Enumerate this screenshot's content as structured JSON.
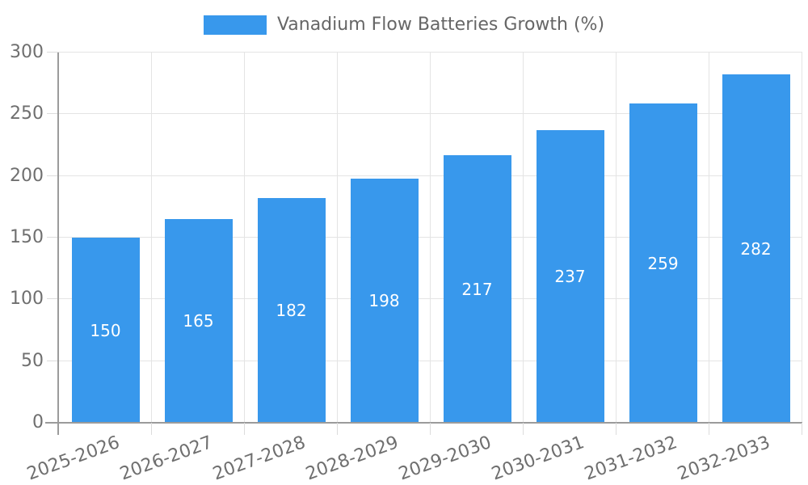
{
  "chart_data": {
    "type": "bar",
    "legend": [
      "Vanadium Flow Batteries Growth (%)"
    ],
    "legend_position": "top-center",
    "categories": [
      "2025-2026",
      "2026-2027",
      "2027-2028",
      "2028-2029",
      "2029-2030",
      "2030-2031",
      "2031-2032",
      "2032-2033"
    ],
    "values": [
      150,
      165,
      182,
      198,
      217,
      237,
      259,
      282
    ],
    "xlabel": "",
    "ylabel": "",
    "ylim": [
      0,
      300
    ],
    "yticks": [
      0,
      50,
      100,
      150,
      200,
      250,
      300
    ],
    "x_tick_label_rotation_deg": -20,
    "grid": true,
    "value_labels_inside_bars": true,
    "colors": {
      "bar": "#3898EC",
      "value_label": "#FFFFFF",
      "grid": "#E4E4E4",
      "tick": "#DCDCDC",
      "axis_line": "#9B9B9B",
      "axis_text": "#6F6F6F",
      "legend_text": "#666666",
      "background": "#FFFFFF"
    }
  }
}
